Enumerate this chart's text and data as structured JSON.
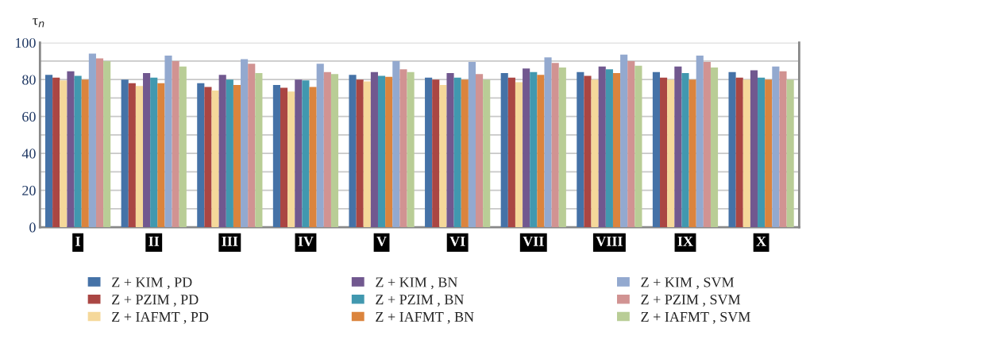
{
  "chart_data": {
    "type": "bar",
    "ylabel": "τ$_{n}$",
    "categories": [
      "I",
      "II",
      "III",
      "IV",
      "V",
      "VI",
      "VII",
      "VIII",
      "IX",
      "X"
    ],
    "series": [
      {
        "name": "Z + KIM , PD",
        "color": "#4572a7",
        "values": [
          82.5,
          80,
          78,
          77,
          82.5,
          81,
          83.5,
          84,
          84,
          84
        ]
      },
      {
        "name": "Z + PZIM , PD",
        "color": "#aa4643",
        "values": [
          81,
          78,
          76,
          75.5,
          80,
          80,
          81,
          82,
          81,
          81
        ]
      },
      {
        "name": "Z + IAFMT , PD",
        "color": "#f5d89a",
        "values": [
          79.5,
          76.5,
          74,
          73.5,
          79,
          77,
          78.5,
          80,
          80,
          80
        ]
      },
      {
        "name": "Z + KIM , BN",
        "color": "#71588f",
        "values": [
          84.5,
          83.5,
          82.5,
          80,
          84,
          83.5,
          86,
          87,
          87,
          85
        ]
      },
      {
        "name": "Z + PZIM , BN",
        "color": "#4198af",
        "values": [
          82,
          81,
          80,
          79.5,
          82,
          81,
          84,
          85.5,
          83.5,
          81
        ]
      },
      {
        "name": "Z + IAFMT , BN",
        "color": "#db843d",
        "values": [
          80,
          78,
          77,
          76,
          81.5,
          80,
          82.5,
          83.5,
          80,
          80
        ]
      },
      {
        "name": "Z + KIM , SVM",
        "color": "#93a9cf",
        "values": [
          94,
          93,
          91,
          88.5,
          90,
          89.5,
          92,
          93.5,
          93,
          87
        ]
      },
      {
        "name": "Z + PZIM , SVM",
        "color": "#d19392",
        "values": [
          91.5,
          90,
          88.5,
          84,
          85.5,
          83,
          89,
          90,
          89.5,
          84.5
        ]
      },
      {
        "name": "Z + IAFMT , SVM",
        "color": "#b9cd96",
        "values": [
          90,
          87,
          83.5,
          83,
          84,
          80,
          86.5,
          87.5,
          86.5,
          80
        ]
      }
    ],
    "ylim": [
      0,
      100
    ],
    "yticks": [
      0,
      {
        "value": 10,
        "label": null
      },
      20,
      {
        "value": 30,
        "label": null
      },
      40,
      {
        "value": 50,
        "label": null
      },
      60,
      {
        "value": 70,
        "label": null
      },
      80,
      {
        "value": 90,
        "label": null
      },
      100
    ],
    "grid": "y",
    "legend": "bottom"
  }
}
